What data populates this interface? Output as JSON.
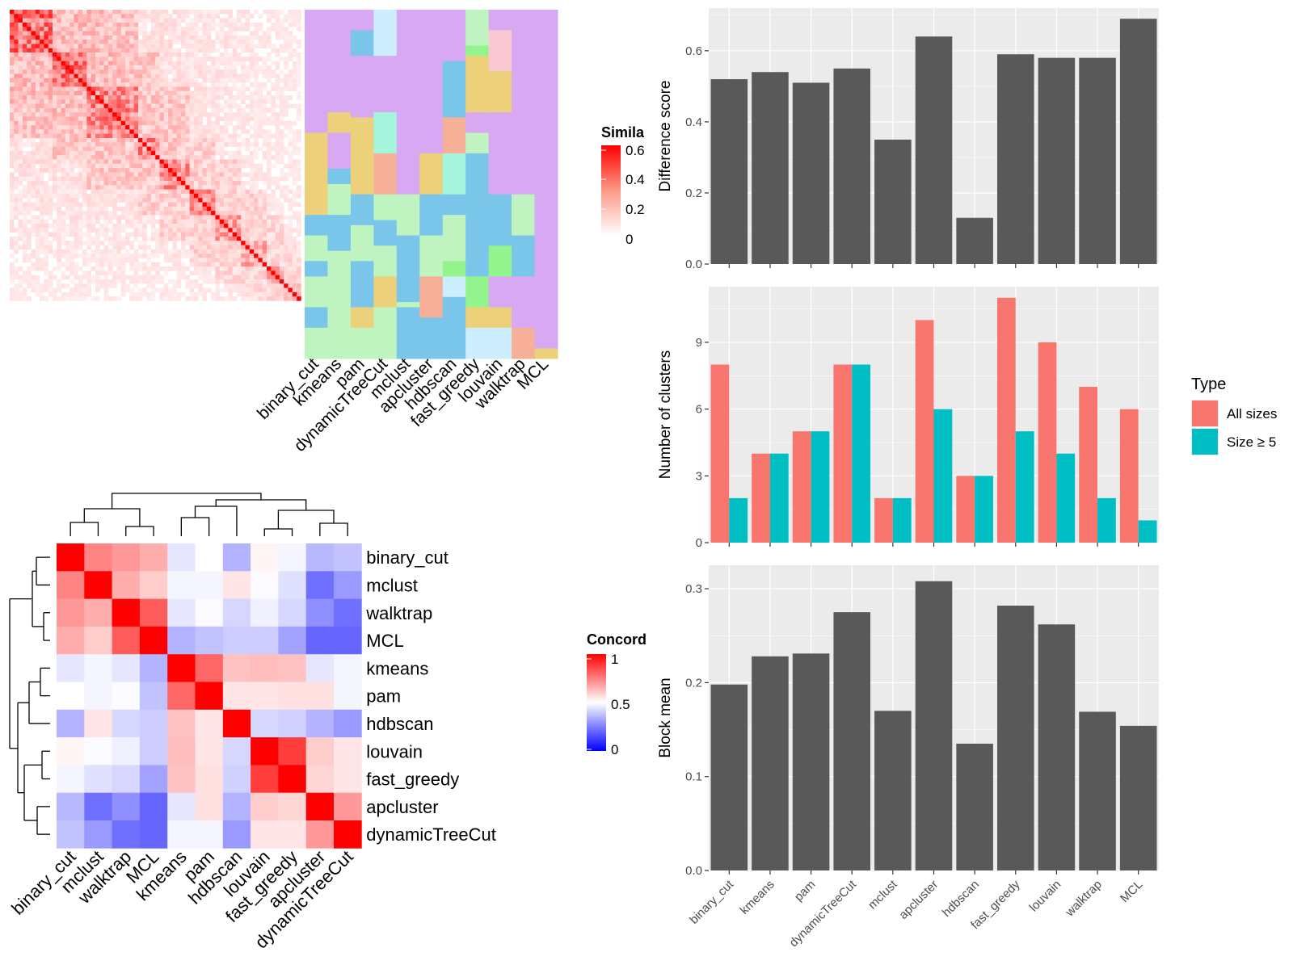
{
  "methods": [
    "binary_cut",
    "kmeans",
    "pam",
    "dynamicTreeCut",
    "mclust",
    "apcluster",
    "hdbscan",
    "fast_greedy",
    "louvain",
    "walktrap",
    "MCL"
  ],
  "colors": {
    "panel_bg": "#ebebeb",
    "grid": "#ffffff",
    "bar": "#595959",
    "all_sizes": "#f8766d",
    "size_ge_5": "#00bfc4",
    "heat_high": "#ff0000",
    "heat_mid": "#ffffff",
    "heat_low": "#0000ff",
    "cluster_palette": [
      "#d9a8f2",
      "#79c6ea",
      "#a3f0b2",
      "#ecd07a",
      "#f6b097",
      "#bff3bf",
      "#a5f4dc",
      "#cceeff",
      "#f9c8d0",
      "#93f48d"
    ]
  },
  "similarity_legend": {
    "title": "Simila",
    "ticks": [
      "0.6",
      "0.4",
      "0.2",
      "0"
    ]
  },
  "concordance_legend": {
    "title": "Concord",
    "ticks": [
      "1",
      "0.5",
      "0"
    ]
  },
  "concordance_order": [
    "binary_cut",
    "mclust",
    "walktrap",
    "MCL",
    "kmeans",
    "pam",
    "hdbscan",
    "louvain",
    "fast_greedy",
    "apcluster",
    "dynamicTreeCut"
  ],
  "concordance_matrix": [
    [
      1.0,
      0.74,
      0.7,
      0.66,
      0.45,
      0.5,
      0.35,
      0.52,
      0.48,
      0.36,
      0.38
    ],
    [
      0.74,
      1.0,
      0.66,
      0.6,
      0.48,
      0.48,
      0.55,
      0.49,
      0.44,
      0.22,
      0.3
    ],
    [
      0.7,
      0.66,
      1.0,
      0.82,
      0.45,
      0.49,
      0.42,
      0.47,
      0.42,
      0.28,
      0.22
    ],
    [
      0.66,
      0.6,
      0.82,
      1.0,
      0.35,
      0.38,
      0.4,
      0.4,
      0.32,
      0.2,
      0.2
    ],
    [
      0.45,
      0.48,
      0.45,
      0.35,
      1.0,
      0.8,
      0.62,
      0.63,
      0.62,
      0.45,
      0.48
    ],
    [
      0.5,
      0.48,
      0.49,
      0.38,
      0.8,
      1.0,
      0.55,
      0.55,
      0.56,
      0.56,
      0.48
    ],
    [
      0.35,
      0.55,
      0.42,
      0.4,
      0.62,
      0.55,
      1.0,
      0.42,
      0.41,
      0.35,
      0.3
    ],
    [
      0.52,
      0.49,
      0.47,
      0.4,
      0.63,
      0.55,
      0.42,
      1.0,
      0.88,
      0.6,
      0.55
    ],
    [
      0.48,
      0.44,
      0.42,
      0.32,
      0.62,
      0.56,
      0.41,
      0.88,
      1.0,
      0.58,
      0.55
    ],
    [
      0.36,
      0.22,
      0.28,
      0.2,
      0.45,
      0.56,
      0.35,
      0.6,
      0.58,
      1.0,
      0.7
    ],
    [
      0.38,
      0.3,
      0.22,
      0.2,
      0.48,
      0.48,
      0.3,
      0.55,
      0.55,
      0.7,
      1.0
    ]
  ],
  "chart_data": [
    {
      "type": "bar",
      "title": "",
      "xlabel": "",
      "ylabel": "Difference score",
      "categories": [
        "binary_cut",
        "kmeans",
        "pam",
        "dynamicTreeCut",
        "mclust",
        "apcluster",
        "hdbscan",
        "fast_greedy",
        "louvain",
        "walktrap",
        "MCL"
      ],
      "values": [
        0.52,
        0.54,
        0.51,
        0.55,
        0.35,
        0.64,
        0.13,
        0.59,
        0.58,
        0.58,
        0.69
      ],
      "ylim": [
        0,
        0.72
      ],
      "yticks": [
        "0.0",
        "0.2",
        "0.4",
        "0.6"
      ],
      "grid": true
    },
    {
      "type": "bar",
      "title": "",
      "xlabel": "",
      "ylabel": "Number of clusters",
      "categories": [
        "binary_cut",
        "kmeans",
        "pam",
        "dynamicTreeCut",
        "mclust",
        "apcluster",
        "hdbscan",
        "fast_greedy",
        "louvain",
        "walktrap",
        "MCL"
      ],
      "series": [
        {
          "name": "All sizes",
          "values": [
            8,
            4,
            5,
            8,
            2,
            10,
            3,
            11,
            9,
            7,
            6
          ]
        },
        {
          "name": "Size ≥ 5",
          "values": [
            2,
            4,
            5,
            8,
            2,
            6,
            3,
            5,
            4,
            2,
            1
          ]
        }
      ],
      "ylim": [
        0,
        11.5
      ],
      "yticks": [
        "0",
        "3",
        "6",
        "9"
      ],
      "legend": {
        "title": "Type",
        "position": "right"
      },
      "grid": true
    },
    {
      "type": "bar",
      "title": "",
      "xlabel": "",
      "ylabel": "Block mean",
      "categories": [
        "binary_cut",
        "kmeans",
        "pam",
        "dynamicTreeCut",
        "mclust",
        "apcluster",
        "hdbscan",
        "fast_greedy",
        "louvain",
        "walktrap",
        "MCL"
      ],
      "values": [
        0.198,
        0.228,
        0.231,
        0.275,
        0.17,
        0.308,
        0.135,
        0.282,
        0.262,
        0.169,
        0.154
      ],
      "ylim": [
        0,
        0.325
      ],
      "yticks": [
        "0.0",
        "0.1",
        "0.2",
        "0.3"
      ],
      "grid": true
    }
  ]
}
